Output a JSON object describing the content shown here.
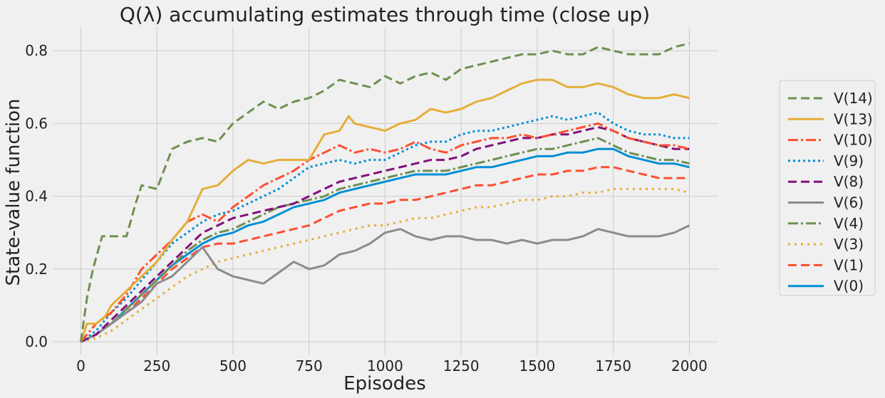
{
  "chart_data": {
    "type": "line",
    "title": "Q(λ) accumulating estimates through time (close up)",
    "xlabel": "Episodes",
    "ylabel": "State-value function",
    "xlim": [
      -90,
      2095
    ],
    "ylim": [
      -0.035,
      0.865
    ],
    "xticks": [
      0,
      250,
      500,
      750,
      1000,
      1250,
      1500,
      1750,
      2000
    ],
    "yticks": [
      0.0,
      0.2,
      0.4,
      0.6,
      0.8
    ],
    "ytick_labels": [
      "0.0",
      "0.2",
      "0.4",
      "0.6",
      "0.8"
    ],
    "grid": true,
    "legend_position": "right",
    "series": [
      {
        "name": "V(14)",
        "color": "#6d904f",
        "dash": "12,6",
        "x": [
          0,
          20,
          40,
          70,
          100,
          150,
          180,
          200,
          250,
          300,
          350,
          400,
          450,
          500,
          550,
          600,
          650,
          700,
          750,
          800,
          850,
          900,
          950,
          1000,
          1050,
          1100,
          1150,
          1200,
          1250,
          1300,
          1350,
          1400,
          1450,
          1500,
          1550,
          1600,
          1650,
          1700,
          1750,
          1800,
          1850,
          1900,
          1950,
          2000
        ],
        "y": [
          0,
          0.12,
          0.2,
          0.29,
          0.29,
          0.29,
          0.38,
          0.43,
          0.42,
          0.53,
          0.55,
          0.56,
          0.55,
          0.6,
          0.63,
          0.66,
          0.64,
          0.66,
          0.67,
          0.69,
          0.72,
          0.71,
          0.7,
          0.73,
          0.71,
          0.73,
          0.74,
          0.72,
          0.75,
          0.76,
          0.77,
          0.78,
          0.79,
          0.79,
          0.8,
          0.79,
          0.79,
          0.81,
          0.8,
          0.79,
          0.79,
          0.79,
          0.81,
          0.82
        ]
      },
      {
        "name": "V(13)",
        "color": "#e5ae38",
        "dash": "",
        "x": [
          0,
          20,
          50,
          80,
          100,
          150,
          200,
          250,
          300,
          350,
          400,
          450,
          500,
          550,
          600,
          650,
          700,
          750,
          800,
          850,
          880,
          900,
          950,
          1000,
          1050,
          1100,
          1150,
          1200,
          1250,
          1300,
          1350,
          1400,
          1450,
          1500,
          1550,
          1600,
          1650,
          1700,
          1750,
          1800,
          1850,
          1900,
          1950,
          2000
        ],
        "y": [
          0,
          0.05,
          0.05,
          0.07,
          0.1,
          0.14,
          0.18,
          0.22,
          0.28,
          0.33,
          0.42,
          0.43,
          0.47,
          0.5,
          0.49,
          0.5,
          0.5,
          0.5,
          0.57,
          0.58,
          0.62,
          0.6,
          0.59,
          0.58,
          0.6,
          0.61,
          0.64,
          0.63,
          0.64,
          0.66,
          0.67,
          0.69,
          0.71,
          0.72,
          0.72,
          0.7,
          0.7,
          0.71,
          0.7,
          0.68,
          0.67,
          0.67,
          0.68,
          0.67
        ]
      },
      {
        "name": "V(10)",
        "color": "#fc4f30",
        "dash": "14,4,3,4",
        "x": [
          0,
          50,
          100,
          150,
          200,
          250,
          300,
          350,
          400,
          450,
          500,
          550,
          600,
          650,
          700,
          750,
          800,
          850,
          900,
          950,
          1000,
          1050,
          1100,
          1150,
          1200,
          1250,
          1300,
          1350,
          1400,
          1450,
          1500,
          1550,
          1600,
          1650,
          1700,
          1750,
          1800,
          1850,
          1900,
          1950,
          2000
        ],
        "y": [
          0,
          0.05,
          0.08,
          0.13,
          0.2,
          0.24,
          0.28,
          0.33,
          0.35,
          0.33,
          0.37,
          0.4,
          0.43,
          0.45,
          0.47,
          0.5,
          0.52,
          0.54,
          0.52,
          0.53,
          0.52,
          0.53,
          0.55,
          0.53,
          0.52,
          0.54,
          0.55,
          0.56,
          0.56,
          0.57,
          0.56,
          0.57,
          0.58,
          0.59,
          0.6,
          0.58,
          0.56,
          0.55,
          0.54,
          0.54,
          0.53
        ]
      },
      {
        "name": "V(9)",
        "color": "#008fd5",
        "dash": "3,4",
        "x": [
          0,
          50,
          100,
          150,
          200,
          250,
          300,
          350,
          400,
          450,
          500,
          550,
          600,
          650,
          700,
          750,
          800,
          850,
          900,
          950,
          1000,
          1050,
          1100,
          1150,
          1200,
          1250,
          1300,
          1350,
          1400,
          1450,
          1500,
          1550,
          1600,
          1650,
          1700,
          1750,
          1800,
          1850,
          1900,
          1950,
          2000
        ],
        "y": [
          0,
          0.03,
          0.08,
          0.12,
          0.17,
          0.22,
          0.27,
          0.3,
          0.33,
          0.35,
          0.36,
          0.38,
          0.4,
          0.42,
          0.45,
          0.48,
          0.49,
          0.5,
          0.49,
          0.5,
          0.5,
          0.52,
          0.54,
          0.55,
          0.55,
          0.57,
          0.58,
          0.58,
          0.59,
          0.6,
          0.61,
          0.62,
          0.61,
          0.62,
          0.63,
          0.6,
          0.58,
          0.57,
          0.57,
          0.56,
          0.56
        ]
      },
      {
        "name": "V(8)",
        "color": "#810f7c",
        "dash": "12,6",
        "x": [
          0,
          50,
          100,
          150,
          200,
          250,
          300,
          350,
          400,
          450,
          500,
          550,
          600,
          650,
          700,
          750,
          800,
          850,
          900,
          950,
          1000,
          1050,
          1100,
          1150,
          1200,
          1250,
          1300,
          1350,
          1400,
          1450,
          1500,
          1550,
          1600,
          1650,
          1700,
          1750,
          1800,
          1850,
          1900,
          1950,
          2000
        ],
        "y": [
          0,
          0.02,
          0.06,
          0.1,
          0.14,
          0.18,
          0.22,
          0.26,
          0.3,
          0.32,
          0.34,
          0.35,
          0.36,
          0.37,
          0.38,
          0.4,
          0.42,
          0.44,
          0.45,
          0.46,
          0.47,
          0.48,
          0.49,
          0.5,
          0.5,
          0.51,
          0.53,
          0.54,
          0.55,
          0.56,
          0.56,
          0.57,
          0.57,
          0.58,
          0.59,
          0.58,
          0.56,
          0.55,
          0.54,
          0.53,
          0.53
        ]
      },
      {
        "name": "V(6)",
        "color": "#8b8b8b",
        "dash": "",
        "x": [
          0,
          50,
          100,
          150,
          200,
          250,
          300,
          350,
          400,
          450,
          500,
          550,
          600,
          650,
          700,
          750,
          800,
          850,
          900,
          950,
          1000,
          1050,
          1100,
          1150,
          1200,
          1250,
          1300,
          1350,
          1400,
          1450,
          1500,
          1550,
          1600,
          1650,
          1700,
          1750,
          1800,
          1850,
          1900,
          1950,
          2000
        ],
        "y": [
          0,
          0.02,
          0.05,
          0.08,
          0.11,
          0.16,
          0.18,
          0.22,
          0.26,
          0.2,
          0.18,
          0.17,
          0.16,
          0.19,
          0.22,
          0.2,
          0.21,
          0.24,
          0.25,
          0.27,
          0.3,
          0.31,
          0.29,
          0.28,
          0.29,
          0.29,
          0.28,
          0.28,
          0.27,
          0.28,
          0.27,
          0.28,
          0.28,
          0.29,
          0.31,
          0.3,
          0.29,
          0.29,
          0.29,
          0.3,
          0.32
        ]
      },
      {
        "name": "V(4)",
        "color": "#6d904f",
        "dash": "14,4,3,4",
        "x": [
          0,
          50,
          100,
          150,
          200,
          250,
          300,
          350,
          400,
          450,
          500,
          550,
          600,
          650,
          700,
          750,
          800,
          850,
          900,
          950,
          1000,
          1050,
          1100,
          1150,
          1200,
          1250,
          1300,
          1350,
          1400,
          1450,
          1500,
          1550,
          1600,
          1650,
          1700,
          1750,
          1800,
          1850,
          1900,
          1950,
          2000
        ],
        "y": [
          0,
          0.02,
          0.05,
          0.09,
          0.13,
          0.17,
          0.21,
          0.25,
          0.28,
          0.3,
          0.31,
          0.33,
          0.35,
          0.37,
          0.38,
          0.39,
          0.4,
          0.42,
          0.43,
          0.44,
          0.45,
          0.46,
          0.47,
          0.47,
          0.47,
          0.48,
          0.49,
          0.5,
          0.51,
          0.52,
          0.53,
          0.53,
          0.54,
          0.55,
          0.56,
          0.54,
          0.52,
          0.51,
          0.5,
          0.5,
          0.49
        ]
      },
      {
        "name": "V(3)",
        "color": "#e5ae38",
        "dash": "3,6",
        "x": [
          0,
          50,
          100,
          150,
          200,
          250,
          300,
          350,
          400,
          450,
          500,
          550,
          600,
          650,
          700,
          750,
          800,
          850,
          900,
          950,
          1000,
          1050,
          1100,
          1150,
          1200,
          1250,
          1300,
          1350,
          1400,
          1450,
          1500,
          1550,
          1600,
          1650,
          1700,
          1750,
          1800,
          1850,
          1900,
          1950,
          2000
        ],
        "y": [
          0,
          0.01,
          0.03,
          0.06,
          0.09,
          0.12,
          0.15,
          0.18,
          0.2,
          0.22,
          0.23,
          0.24,
          0.25,
          0.26,
          0.27,
          0.28,
          0.29,
          0.3,
          0.31,
          0.32,
          0.32,
          0.33,
          0.34,
          0.34,
          0.35,
          0.36,
          0.37,
          0.37,
          0.38,
          0.39,
          0.39,
          0.4,
          0.4,
          0.41,
          0.41,
          0.42,
          0.42,
          0.42,
          0.42,
          0.42,
          0.41
        ]
      },
      {
        "name": "V(1)",
        "color": "#fc4f30",
        "dash": "12,6",
        "x": [
          0,
          50,
          100,
          150,
          200,
          250,
          300,
          350,
          400,
          450,
          500,
          550,
          600,
          650,
          700,
          750,
          800,
          850,
          900,
          950,
          1000,
          1050,
          1100,
          1150,
          1200,
          1250,
          1300,
          1350,
          1400,
          1450,
          1500,
          1550,
          1600,
          1650,
          1700,
          1750,
          1800,
          1850,
          1900,
          1950,
          2000
        ],
        "y": [
          0,
          0.02,
          0.05,
          0.08,
          0.12,
          0.16,
          0.2,
          0.23,
          0.26,
          0.27,
          0.27,
          0.28,
          0.29,
          0.3,
          0.31,
          0.32,
          0.34,
          0.36,
          0.37,
          0.38,
          0.38,
          0.39,
          0.39,
          0.4,
          0.41,
          0.42,
          0.43,
          0.43,
          0.44,
          0.45,
          0.46,
          0.46,
          0.47,
          0.47,
          0.48,
          0.48,
          0.47,
          0.46,
          0.45,
          0.45,
          0.45
        ]
      },
      {
        "name": "V(0)",
        "color": "#008fd5",
        "dash": "",
        "x": [
          0,
          50,
          100,
          150,
          200,
          250,
          300,
          350,
          400,
          450,
          500,
          550,
          600,
          650,
          700,
          750,
          800,
          850,
          900,
          950,
          1000,
          1050,
          1100,
          1150,
          1200,
          1250,
          1300,
          1350,
          1400,
          1450,
          1500,
          1550,
          1600,
          1650,
          1700,
          1750,
          1800,
          1850,
          1900,
          1950,
          2000
        ],
        "y": [
          0,
          0.02,
          0.05,
          0.09,
          0.13,
          0.17,
          0.21,
          0.24,
          0.27,
          0.29,
          0.3,
          0.32,
          0.33,
          0.35,
          0.37,
          0.38,
          0.39,
          0.41,
          0.42,
          0.43,
          0.44,
          0.45,
          0.46,
          0.46,
          0.46,
          0.47,
          0.48,
          0.48,
          0.49,
          0.5,
          0.51,
          0.51,
          0.52,
          0.52,
          0.53,
          0.53,
          0.51,
          0.5,
          0.49,
          0.49,
          0.48
        ]
      }
    ]
  }
}
